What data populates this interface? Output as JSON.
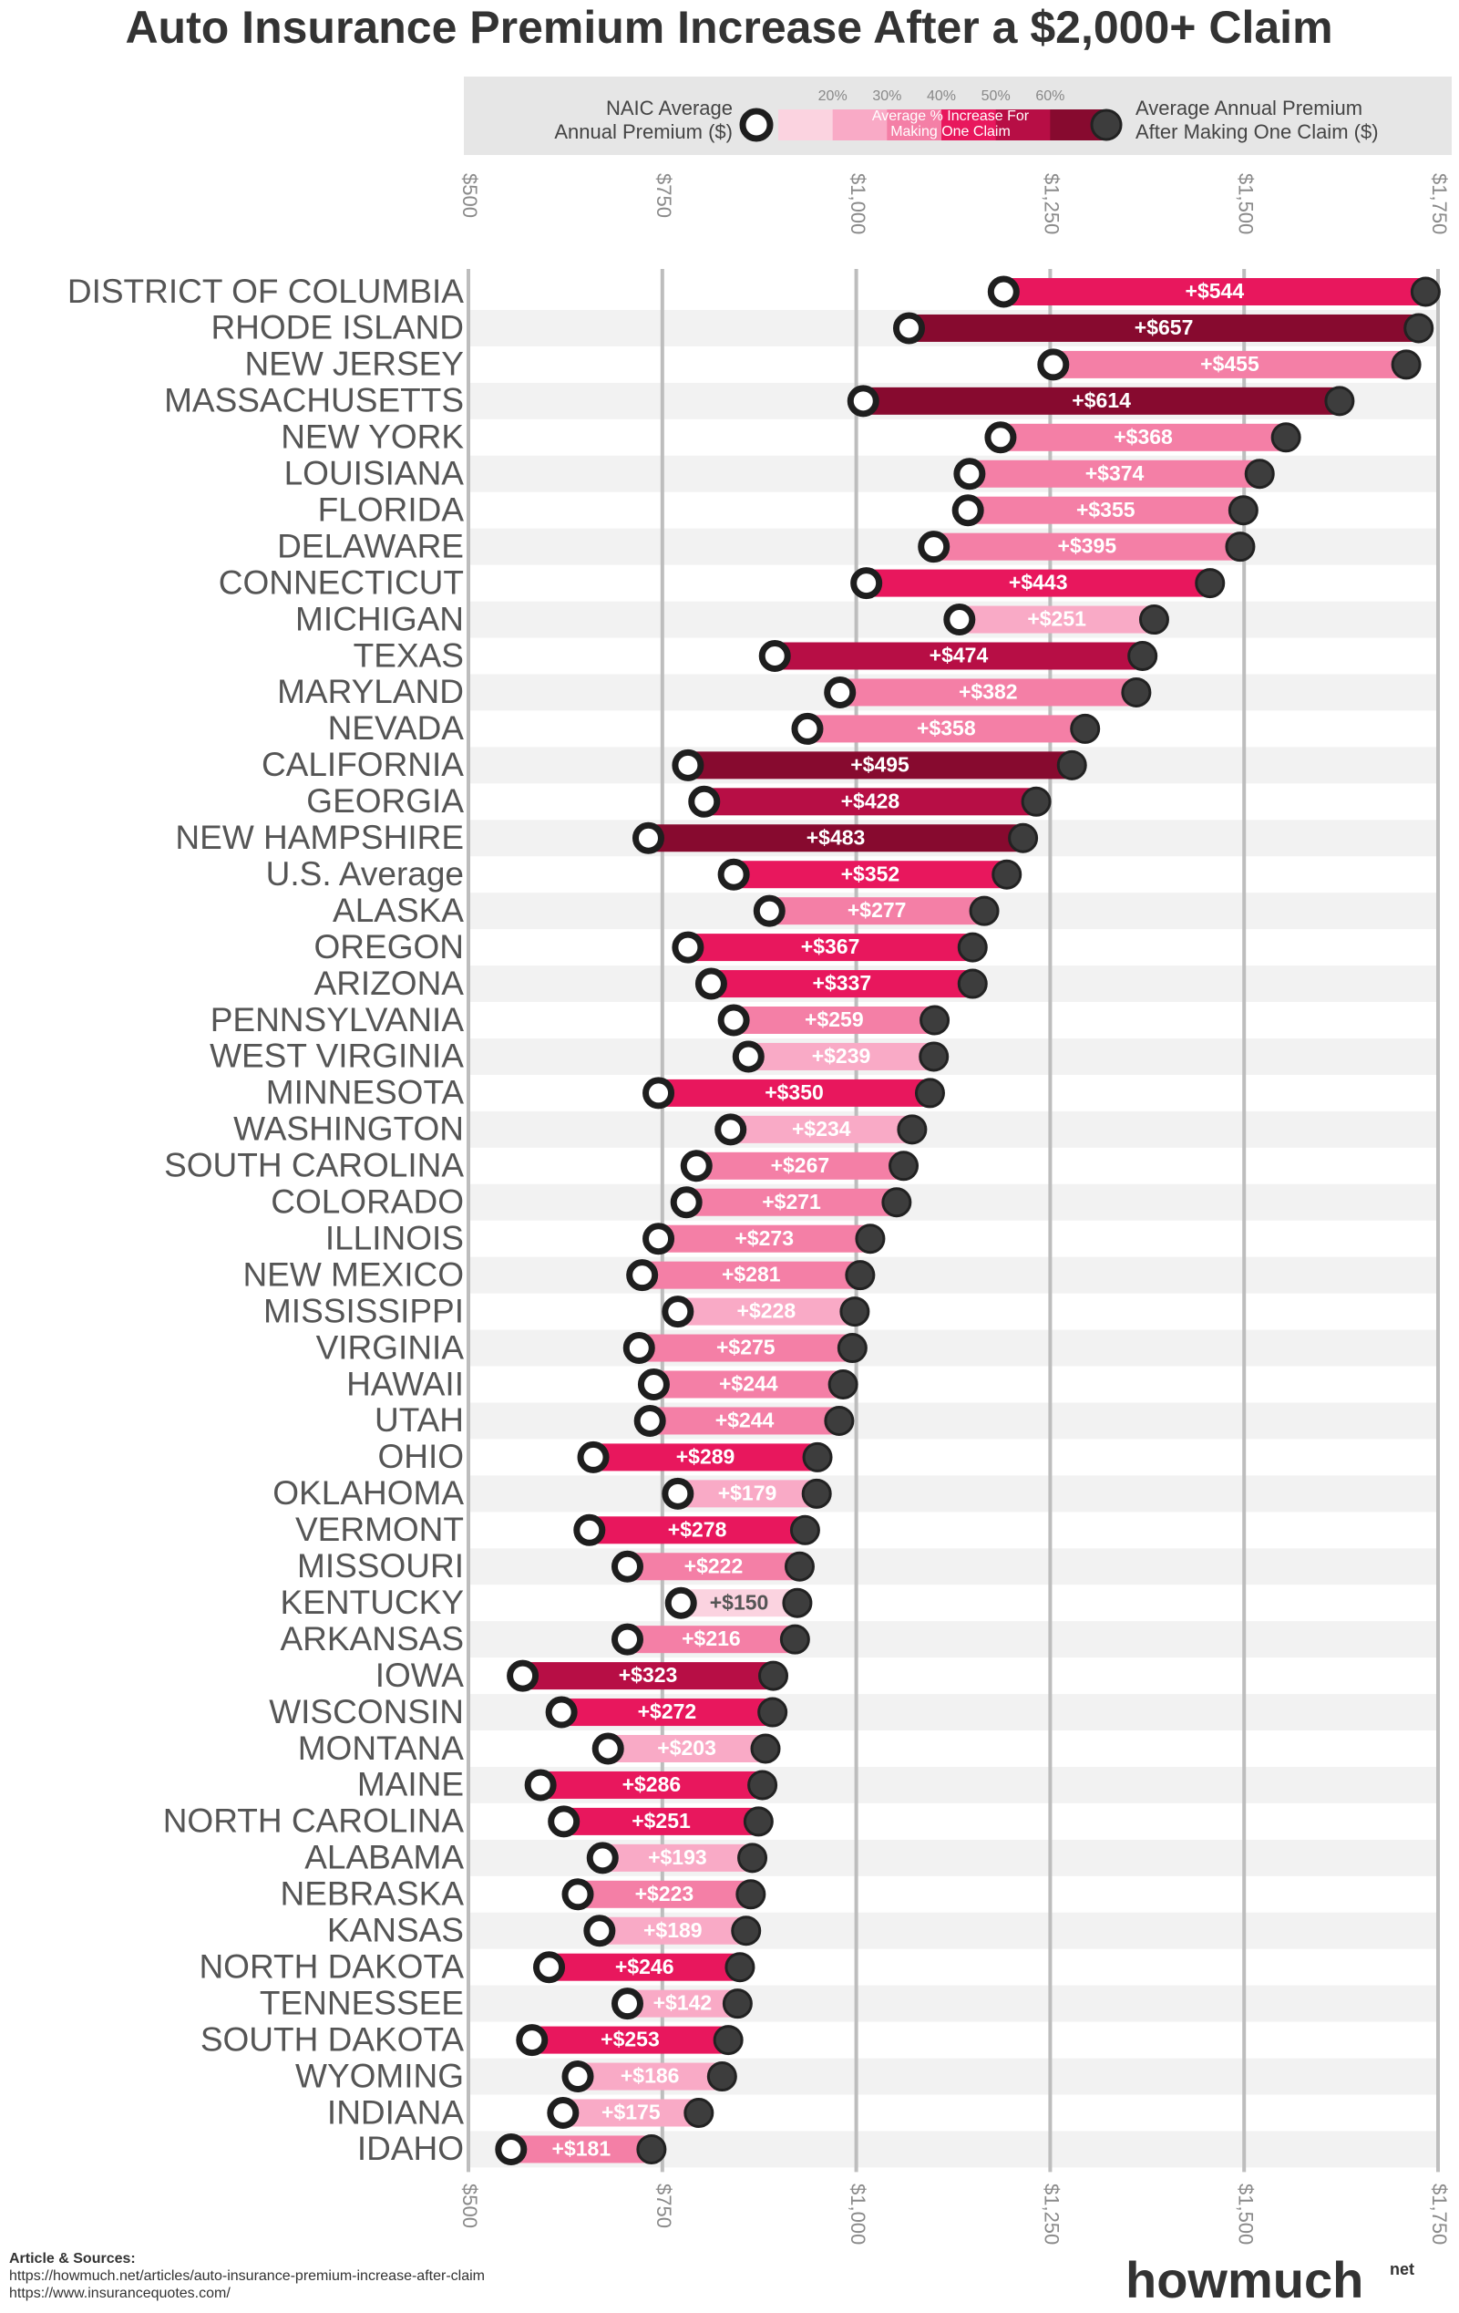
{
  "chart_data": {
    "type": "dumbbell",
    "title": "Auto Insurance Premium Increase After a $2,000+ Claim",
    "categories": [
      "DISTRICT OF COLUMBIA",
      "RHODE ISLAND",
      "NEW JERSEY",
      "MASSACHUSETTS",
      "NEW YORK",
      "LOUISIANA",
      "FLORIDA",
      "DELAWARE",
      "CONNECTICUT",
      "MICHIGAN",
      "TEXAS",
      "MARYLAND",
      "NEVADA",
      "CALIFORNIA",
      "GEORGIA",
      "NEW HAMPSHIRE",
      "U.S. Average",
      "ALASKA",
      "OREGON",
      "ARIZONA",
      "PENNSYLVANIA",
      "WEST VIRGINIA",
      "MINNESOTA",
      "WASHINGTON",
      "SOUTH CAROLINA",
      "COLORADO",
      "ILLINOIS",
      "NEW MEXICO",
      "MISSISSIPPI",
      "VIRGINIA",
      "HAWAII",
      "UTAH",
      "OHIO",
      "OKLAHOMA",
      "VERMONT",
      "MISSOURI",
      "KENTUCKY",
      "ARKANSAS",
      "IOWA",
      "WISCONSIN",
      "MONTANA",
      "MAINE",
      "NORTH CAROLINA",
      "ALABAMA",
      "NEBRASKA",
      "KANSAS",
      "NORTH DAKOTA",
      "TENNESSEE",
      "SOUTH DAKOTA",
      "WYOMING",
      "INDIANA",
      "IDAHO"
    ],
    "series": [
      {
        "values": [
          1190,
          1068,
          1254,
          1009,
          1186,
          1146,
          1144,
          1100,
          1013,
          1133,
          895,
          979,
          937,
          783,
          804,
          732,
          842,
          888,
          783,
          813,
          842,
          861,
          745,
          838,
          794,
          781,
          745,
          724,
          770,
          720,
          739,
          734,
          661,
          770,
          656,
          705,
          774,
          705,
          570,
          620,
          680,
          593,
          623,
          673,
          641,
          669,
          604,
          705,
          582,
          641,
          622,
          555
        ]
      },
      {
        "values": [
          544,
          657,
          455,
          614,
          368,
          374,
          355,
          395,
          443,
          251,
          474,
          382,
          358,
          495,
          428,
          483,
          352,
          277,
          367,
          337,
          259,
          239,
          350,
          234,
          267,
          271,
          273,
          281,
          228,
          275,
          244,
          244,
          289,
          179,
          278,
          222,
          150,
          216,
          323,
          272,
          203,
          286,
          251,
          193,
          223,
          189,
          246,
          142,
          253,
          186,
          175,
          181
        ],
        "value_labels": [
          "+$544",
          "+$657",
          "+$455",
          "+$614",
          "+$368",
          "+$374",
          "+$355",
          "+$395",
          "+$443",
          "+$251",
          "+$474",
          "+$382",
          "+$358",
          "+$495",
          "+$428",
          "+$483",
          "+$352",
          "+$277",
          "+$367",
          "+$337",
          "+$259",
          "+$239",
          "+$350",
          "+$234",
          "+$267",
          "+$271",
          "+$273",
          "+$281",
          "+$228",
          "+$275",
          "+$244",
          "+$244",
          "+$289",
          "+$179",
          "+$278",
          "+$222",
          "+$150",
          "+$216",
          "+$323",
          "+$272",
          "+$203",
          "+$286",
          "+$251",
          "+$193",
          "+$223",
          "+$189",
          "+$246",
          "+$142",
          "+$253",
          "+$186",
          "+$175",
          "+$181"
        ]
      }
    ],
    "xlim": [
      500,
      1750
    ],
    "xticks": [
      {
        "value": 500,
        "label": "$500"
      },
      {
        "value": 750,
        "label": "$750"
      },
      {
        "value": 1000,
        "label": "$1,000"
      },
      {
        "value": 1250,
        "label": "$1,250"
      },
      {
        "value": 1500,
        "label": "$1,500"
      },
      {
        "value": 1750,
        "label": "$1,750"
      }
    ],
    "grid": true,
    "legend": {
      "start_label": [
        "NAIC Average",
        "Annual Premium ($)"
      ],
      "increase_label": [
        "Average % Increase For",
        "Making One Claim"
      ],
      "end_label": [
        "Average Annual Premium",
        "After Making One Claim ($)"
      ],
      "ticks": [
        {
          "value": 20,
          "label": "20%"
        },
        {
          "value": 30,
          "label": "30%"
        },
        {
          "value": 40,
          "label": "40%"
        },
        {
          "value": 50,
          "label": "50%"
        },
        {
          "value": 60,
          "label": "60%"
        }
      ],
      "colors": [
        "#fbd3e0",
        "#f9aac6",
        "#f47fa6",
        "#e8175d",
        "#b70e45",
        "#870a2f"
      ]
    }
  },
  "footer": {
    "heading": "Article & Sources:",
    "sources": [
      "https://howmuch.net/articles/auto-insurance-premium-increase-after-claim",
      "https://www.insurancequotes.com/"
    ],
    "brand": "howmuch",
    "brand_suffix": "net"
  }
}
